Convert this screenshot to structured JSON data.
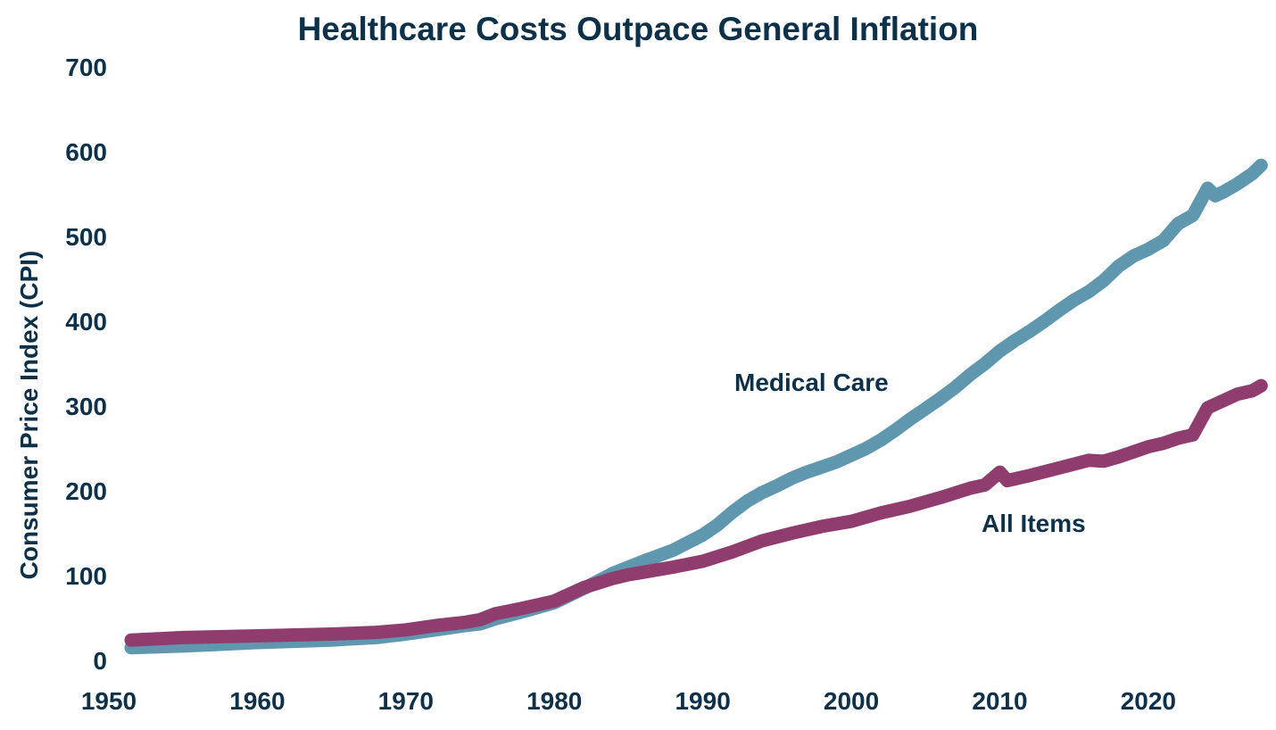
{
  "chart_data": {
    "type": "line",
    "title": "Healthcare Costs Outpace General Inflation",
    "xlabel": "",
    "ylabel": "Consumer Price Index (CPI)",
    "xlim": [
      1950,
      2028
    ],
    "ylim": [
      0,
      700
    ],
    "x_ticks": [
      1950,
      1960,
      1970,
      1980,
      1990,
      2000,
      2010,
      2020
    ],
    "y_ticks": [
      0,
      100,
      200,
      300,
      400,
      500,
      600,
      700
    ],
    "grid": false,
    "legend": "inline labels",
    "series": [
      {
        "name": "Medical Care",
        "color": "#5f97ae",
        "x": [
          1951.5,
          1955,
          1960,
          1965,
          1968,
          1970,
          1972,
          1974,
          1975,
          1976,
          1978,
          1980,
          1982,
          1984,
          1985,
          1986,
          1988,
          1990,
          1991,
          1992,
          1993,
          1994,
          1995,
          1996,
          1997,
          1998,
          1999,
          2000,
          2001,
          2002,
          2003,
          2004,
          2005,
          2006,
          2007,
          2008,
          2009,
          2010,
          2011,
          2012,
          2013,
          2014,
          2015,
          2016,
          2017,
          2018,
          2019,
          2020,
          2021,
          2022,
          2023,
          2024,
          2024.5,
          2025,
          2026,
          2027,
          2027.6
        ],
        "values": [
          15,
          17,
          21,
          24,
          27,
          31,
          36,
          41,
          43,
          49,
          58,
          68,
          85,
          103,
          110,
          117,
          130,
          148,
          160,
          175,
          188,
          198,
          206,
          215,
          222,
          228,
          234,
          242,
          250,
          260,
          272,
          285,
          297,
          309,
          322,
          337,
          350,
          365,
          377,
          388,
          400,
          413,
          425,
          435,
          448,
          465,
          477,
          485,
          495,
          515,
          525,
          557,
          548,
          552,
          562,
          574,
          584
        ]
      },
      {
        "name": "All Items",
        "color": "#8f3d6f",
        "x": [
          1951.5,
          1955,
          1960,
          1965,
          1968,
          1970,
          1972,
          1974,
          1975,
          1976,
          1978,
          1980,
          1982,
          1984,
          1985,
          1986,
          1988,
          1990,
          1992,
          1994,
          1996,
          1998,
          2000,
          2002,
          2004,
          2006,
          2008,
          2009,
          2010,
          2010.5,
          2012,
          2014,
          2016,
          2017,
          2018,
          2020,
          2021,
          2022,
          2023,
          2024,
          2025,
          2026,
          2027,
          2027.6
        ],
        "values": [
          24,
          27,
          29,
          31,
          33,
          36,
          41,
          45,
          48,
          55,
          62,
          70,
          86,
          97,
          101,
          104,
          110,
          117,
          128,
          141,
          150,
          158,
          164,
          174,
          182,
          192,
          203,
          207,
          222,
          212,
          218,
          227,
          236,
          235,
          240,
          252,
          256,
          262,
          266,
          298,
          306,
          314,
          318,
          324
        ]
      }
    ],
    "annotations": [
      {
        "text": "Medical Care",
        "series": "Medical Care"
      },
      {
        "text": "All Items",
        "series": "All Items"
      }
    ]
  }
}
